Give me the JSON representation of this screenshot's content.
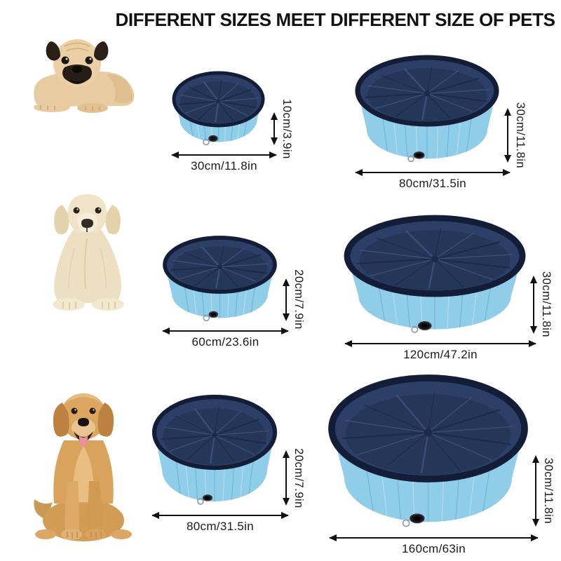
{
  "title": "DIFFERENT SIZES MEET DIFFERENT SIZE OF PETS",
  "colors": {
    "pool_wall": "#8fcde9",
    "pool_wall_shade": "#6fb3d6",
    "pool_wall_light": "#b5e0f3",
    "pool_interior": "#2c4067",
    "pool_interior_dark": "#202f4f",
    "pool_crease_dark": "#1b2a4a",
    "pool_crease_light": "#3d547f",
    "pool_rim": "#131d38",
    "arrow": "#111111"
  },
  "rows": [
    {
      "dog": "pug-puppy",
      "pools": [
        {
          "diameter": "30cm/11.8in",
          "height": "10cm/3.9in"
        },
        {
          "diameter": "80cm/31.5in",
          "height": "30cm/11.8in"
        }
      ]
    },
    {
      "dog": "labrador-puppy",
      "pools": [
        {
          "diameter": "60cm/23.6in",
          "height": "20cm/7.9in"
        },
        {
          "diameter": "120cm/47.2in",
          "height": "30cm/11.8in"
        }
      ]
    },
    {
      "dog": "golden-retriever",
      "pools": [
        {
          "diameter": "80cm/31.5in",
          "height": "20cm/7.9in"
        },
        {
          "diameter": "160cm/63in",
          "height": "30cm/11.8in"
        }
      ]
    }
  ]
}
